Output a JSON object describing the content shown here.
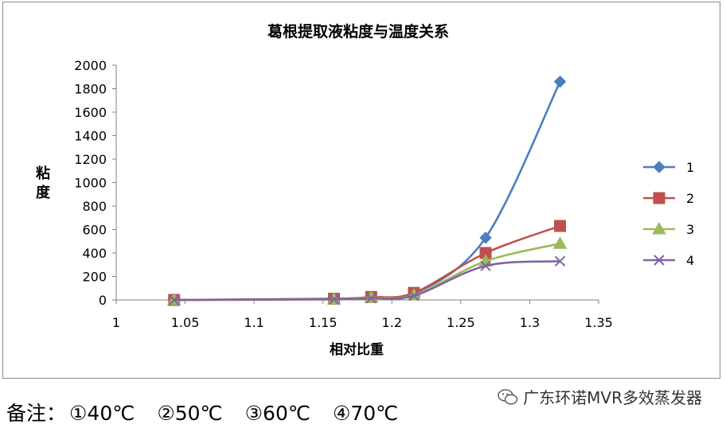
{
  "chart_data": {
    "type": "line",
    "title": "葛根提取液粘度与温度关系",
    "xlabel": "相对比重",
    "ylabel": "粘度",
    "xlim": [
      1,
      1.35
    ],
    "ylim": [
      0,
      2000
    ],
    "xticks": [
      "1",
      "1.05",
      "1.1",
      "1.15",
      "1.2",
      "1.25",
      "1.3",
      "1.35"
    ],
    "yticks": [
      "0",
      "200",
      "400",
      "600",
      "800",
      "1000",
      "1200",
      "1400",
      "1600",
      "1800",
      "2000"
    ],
    "grid": false,
    "legend_position": "right",
    "series": [
      {
        "name": "1",
        "color": "#4a7ebf",
        "marker": "diamond",
        "x": [
          1.042,
          1.158,
          1.185,
          1.216,
          1.268,
          1.322
        ],
        "y": [
          0,
          10,
          25,
          50,
          530,
          1860
        ]
      },
      {
        "name": "2",
        "color": "#c0504d",
        "marker": "square",
        "x": [
          1.042,
          1.158,
          1.185,
          1.216,
          1.268,
          1.322
        ],
        "y": [
          0,
          10,
          25,
          60,
          400,
          630
        ]
      },
      {
        "name": "3",
        "color": "#9bbb59",
        "marker": "triangle",
        "x": [
          1.042,
          1.158,
          1.185,
          1.216,
          1.268,
          1.322
        ],
        "y": [
          0,
          5,
          20,
          40,
          330,
          480
        ]
      },
      {
        "name": "4",
        "color": "#8064a2",
        "marker": "x",
        "x": [
          1.042,
          1.158,
          1.185,
          1.216,
          1.268,
          1.322
        ],
        "y": [
          0,
          5,
          15,
          35,
          290,
          330
        ]
      }
    ]
  },
  "notes": {
    "prefix": "备注：",
    "items": [
      "①40℃",
      "②50℃",
      "③60℃",
      "④70℃"
    ]
  },
  "watermark": {
    "text": "广东环诺MVR多效蒸发器",
    "icon": "wechat-icon"
  }
}
